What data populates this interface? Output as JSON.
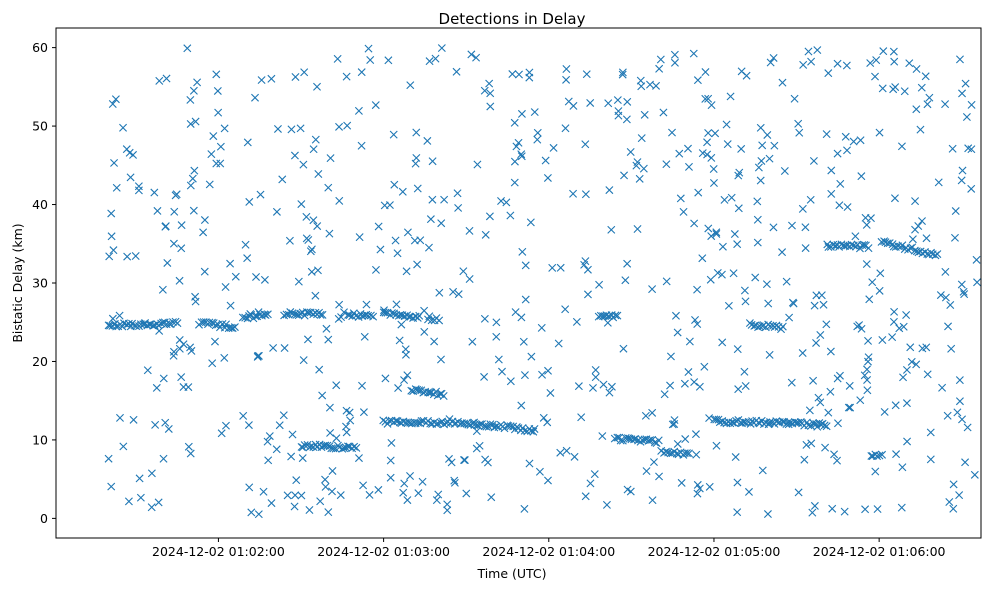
{
  "chart_data": {
    "type": "scatter",
    "title": "Detections in Delay",
    "xlabel": "Time (UTC)",
    "ylabel": "Bistatic Delay (km)",
    "marker": "x",
    "color": "#1f77b4",
    "grid": false,
    "legend": "none",
    "x_range": [
      "2024-12-02 01:01:01",
      "2024-12-02 01:06:37"
    ],
    "ylim": [
      -2.5,
      62.5
    ],
    "x_ticks": [
      "2024-12-02 01:02:00",
      "2024-12-02 01:03:00",
      "2024-12-02 01:04:00",
      "2024-12-02 01:05:00",
      "2024-12-02 01:06:00"
    ],
    "y_ticks": [
      0,
      10,
      20,
      30,
      40,
      50,
      60
    ],
    "tracks": [
      {
        "start": "2024-12-02 01:01:20",
        "end": "2024-12-02 01:01:45",
        "y_start": 24.6,
        "y_end": 24.9
      },
      {
        "start": "2024-12-02 01:01:53",
        "end": "2024-12-02 01:02:06",
        "y_start": 24.9,
        "y_end": 24.4
      },
      {
        "start": "2024-12-02 01:02:09",
        "end": "2024-12-02 01:02:18",
        "y_start": 25.6,
        "y_end": 25.9
      },
      {
        "start": "2024-12-02 01:02:24",
        "end": "2024-12-02 01:02:38",
        "y_start": 26.1,
        "y_end": 26.0
      },
      {
        "start": "2024-12-02 01:02:47",
        "end": "2024-12-02 01:02:56",
        "y_start": 26.0,
        "y_end": 25.8
      },
      {
        "start": "2024-12-02 01:03:00",
        "end": "2024-12-02 01:03:13",
        "y_start": 26.1,
        "y_end": 25.6
      },
      {
        "start": "2024-12-02 01:03:16",
        "end": "2024-12-02 01:03:20",
        "y_start": 25.6,
        "y_end": 25.3
      },
      {
        "start": "2024-12-02 01:02:30",
        "end": "2024-12-02 01:02:50",
        "y_start": 9.3,
        "y_end": 9.0
      },
      {
        "start": "2024-12-02 01:03:00",
        "end": "2024-12-02 01:03:33",
        "y_start": 12.3,
        "y_end": 12.1
      },
      {
        "start": "2024-12-02 01:03:33",
        "end": "2024-12-02 01:03:55",
        "y_start": 12.1,
        "y_end": 11.2
      },
      {
        "start": "2024-12-02 01:03:10",
        "end": "2024-12-02 01:03:22",
        "y_start": 16.3,
        "y_end": 15.8
      },
      {
        "start": "2024-12-02 01:04:18",
        "end": "2024-12-02 01:04:25",
        "y_start": 25.8,
        "y_end": 25.6
      },
      {
        "start": "2024-12-02 01:04:24",
        "end": "2024-12-02 01:04:40",
        "y_start": 10.2,
        "y_end": 9.8
      },
      {
        "start": "2024-12-02 01:04:41",
        "end": "2024-12-02 01:04:51",
        "y_start": 8.6,
        "y_end": 8.2
      },
      {
        "start": "2024-12-02 01:05:00",
        "end": "2024-12-02 01:05:27",
        "y_start": 12.4,
        "y_end": 12.1
      },
      {
        "start": "2024-12-02 01:05:27",
        "end": "2024-12-02 01:05:41",
        "y_start": 12.1,
        "y_end": 11.9
      },
      {
        "start": "2024-12-02 01:05:13",
        "end": "2024-12-02 01:05:25",
        "y_start": 24.7,
        "y_end": 24.3
      },
      {
        "start": "2024-12-02 01:05:41",
        "end": "2024-12-02 01:05:56",
        "y_start": 34.8,
        "y_end": 34.6
      },
      {
        "start": "2024-12-02 01:05:57",
        "end": "2024-12-02 01:06:01",
        "y_start": 8.2,
        "y_end": 8.0
      },
      {
        "start": "2024-12-02 01:06:01",
        "end": "2024-12-02 01:06:21",
        "y_start": 35.2,
        "y_end": 33.6
      }
    ]
  }
}
